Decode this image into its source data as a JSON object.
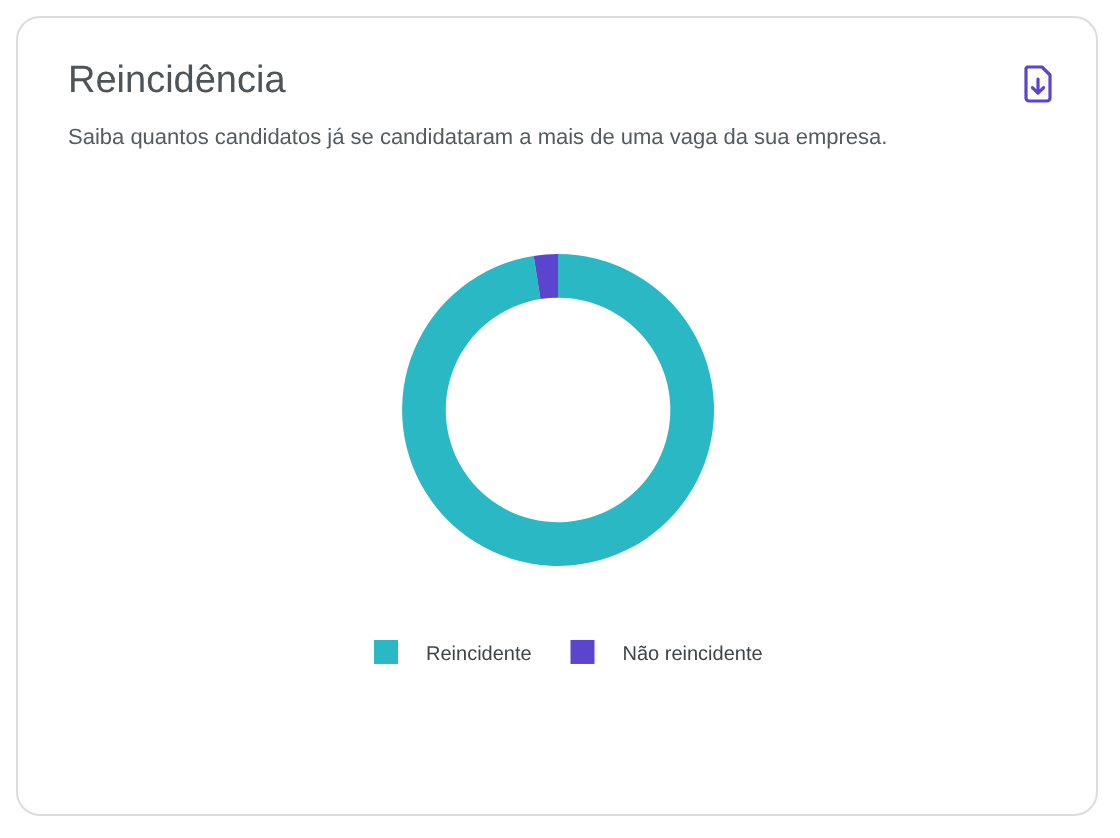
{
  "chart_data": {
    "type": "donut",
    "title": "Reincidência",
    "subtitle": "Saiba quantos candidatos já se candidataram a mais de uma vaga da sua empresa.",
    "categories": [
      "Reincidente",
      "Não reincidente"
    ],
    "values": [
      97.5,
      2.5
    ],
    "colors": [
      "#29b8c4",
      "#5b45cf"
    ],
    "legend": "bottom"
  }
}
